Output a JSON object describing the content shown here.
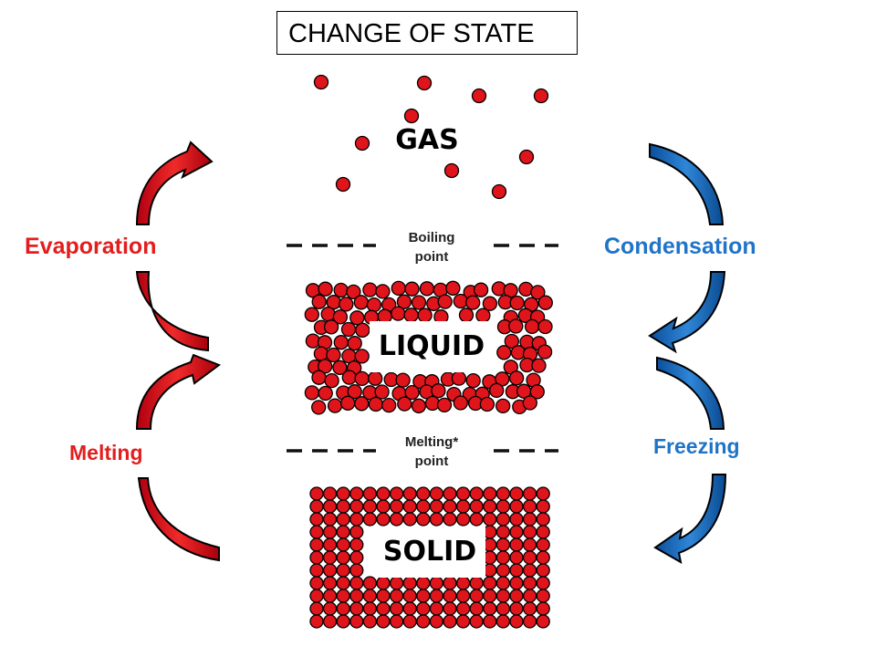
{
  "title": "CHANGE OF STATE",
  "states": {
    "gas": "GAS",
    "liquid": "LIQUID",
    "solid": "SOLID"
  },
  "points": {
    "boiling_line1": "Boiling",
    "boiling_line2": "point",
    "melting_line1": "Melting*",
    "melting_line2": "point"
  },
  "processes": {
    "evaporation": "Evaporation",
    "condensation": "Condensation",
    "melting": "Melting",
    "freezing": "Freezing"
  },
  "colors": {
    "particle": "#e0141b",
    "heating": "#e02020",
    "cooling": "#1f6fc4",
    "cooling_text": "#1f73c8"
  }
}
